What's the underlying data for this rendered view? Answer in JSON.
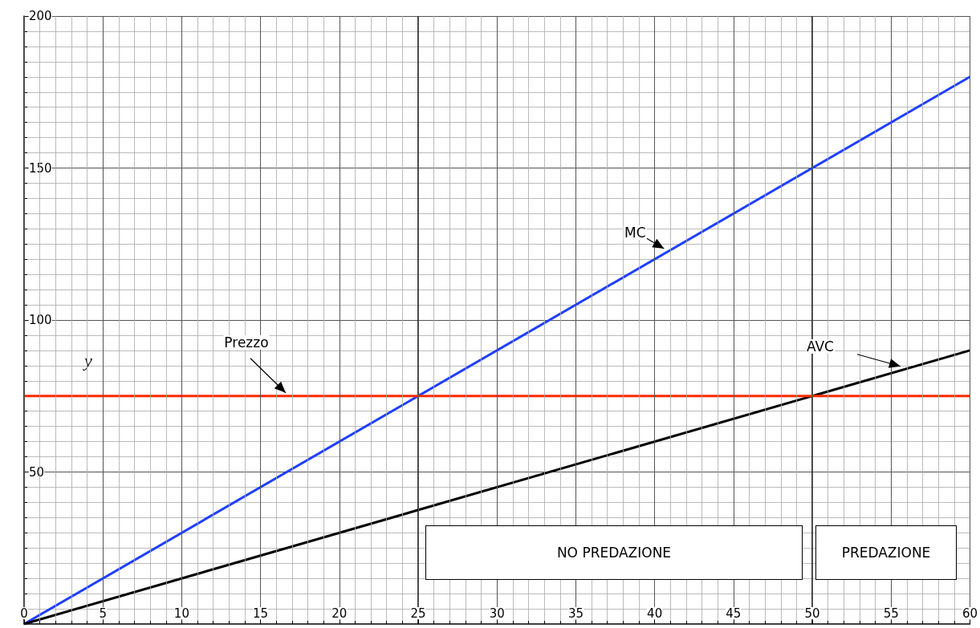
{
  "chart_data": {
    "type": "line",
    "ylabel": "y",
    "xlim": [
      0,
      60
    ],
    "xticks": [
      0,
      5,
      10,
      15,
      20,
      25,
      30,
      35,
      40,
      45,
      50,
      55,
      60
    ],
    "ylim": [
      0,
      200
    ],
    "yticks": [
      50,
      100,
      150,
      200
    ],
    "x": [
      0,
      60
    ],
    "series": [
      {
        "name": "MC",
        "color": "#1f3fff",
        "values": [
          0,
          180
        ]
      },
      {
        "name": "AVC",
        "color": "#000000",
        "values": [
          0,
          90
        ]
      },
      {
        "name": "Prezzo",
        "color": "#ff2a00",
        "values": [
          75,
          75
        ]
      }
    ],
    "ref_lines": [
      {
        "axis": "x",
        "value": 25,
        "color": "#000000"
      },
      {
        "axis": "x",
        "value": 50,
        "color": "#000000"
      }
    ],
    "annotations": [
      "NO PREDAZIONE",
      "PREDAZIONE"
    ],
    "grid": true,
    "legend": false,
    "marker": "none",
    "line_style": "solid"
  }
}
